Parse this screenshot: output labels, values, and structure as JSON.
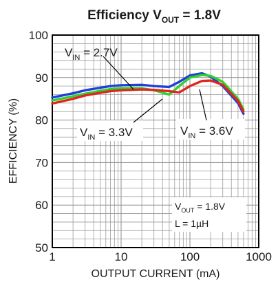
{
  "chart_data": {
    "type": "line",
    "title": {
      "prefix": "Efficiency V",
      "sub": "OUT",
      "suffix": " = 1.8V"
    },
    "xlabel": "OUTPUT CURRENT (mA)",
    "ylabel": "EFFICIENCY (%)",
    "xscale": "log",
    "xlim": [
      1,
      1000
    ],
    "ylim": [
      50,
      100
    ],
    "x_ticks": [
      "1",
      "10",
      "100",
      "1000"
    ],
    "y_ticks": [
      "50",
      "60",
      "70",
      "80",
      "90",
      "100"
    ],
    "grid": true,
    "series": [
      {
        "label": {
          "main": "V",
          "sub": "IN",
          "suffix": " = 2.7V"
        },
        "color": "#1f3fd6",
        "x": [
          1,
          2,
          3,
          5,
          7,
          10,
          20,
          30,
          50,
          70,
          100,
          150,
          200,
          300,
          500,
          600
        ],
        "y": [
          85.3,
          86.3,
          87.0,
          87.6,
          88.0,
          88.2,
          88.3,
          88.0,
          87.8,
          89.0,
          90.5,
          91.0,
          90.2,
          88.0,
          84.0,
          81.5
        ]
      },
      {
        "label": {
          "main": "V",
          "sub": "IN",
          "suffix": " = 3.3V"
        },
        "color": "#2ed12e",
        "x": [
          1,
          2,
          3,
          5,
          7,
          10,
          20,
          30,
          50,
          70,
          100,
          150,
          200,
          300,
          500,
          600
        ],
        "y": [
          84.6,
          85.6,
          86.2,
          86.9,
          87.3,
          87.5,
          87.5,
          87.0,
          86.0,
          88.0,
          90.0,
          90.6,
          90.4,
          89.0,
          85.0,
          82.5
        ]
      },
      {
        "label": {
          "main": "V",
          "sub": "IN",
          "suffix": " = 3.6V"
        },
        "color": "#e0251f",
        "x": [
          1,
          2,
          3,
          5,
          7,
          10,
          20,
          30,
          50,
          70,
          100,
          150,
          200,
          300,
          500,
          600
        ],
        "y": [
          83.9,
          85.0,
          85.8,
          86.4,
          86.8,
          87.0,
          87.2,
          87.1,
          86.8,
          86.5,
          88.0,
          89.2,
          89.3,
          88.3,
          84.5,
          82.0
        ]
      }
    ],
    "annotations": {
      "conditions": {
        "line1": {
          "main": "V",
          "sub": "OUT",
          "suffix": " = 1.8V"
        },
        "line2": "L = 1µH"
      }
    }
  }
}
